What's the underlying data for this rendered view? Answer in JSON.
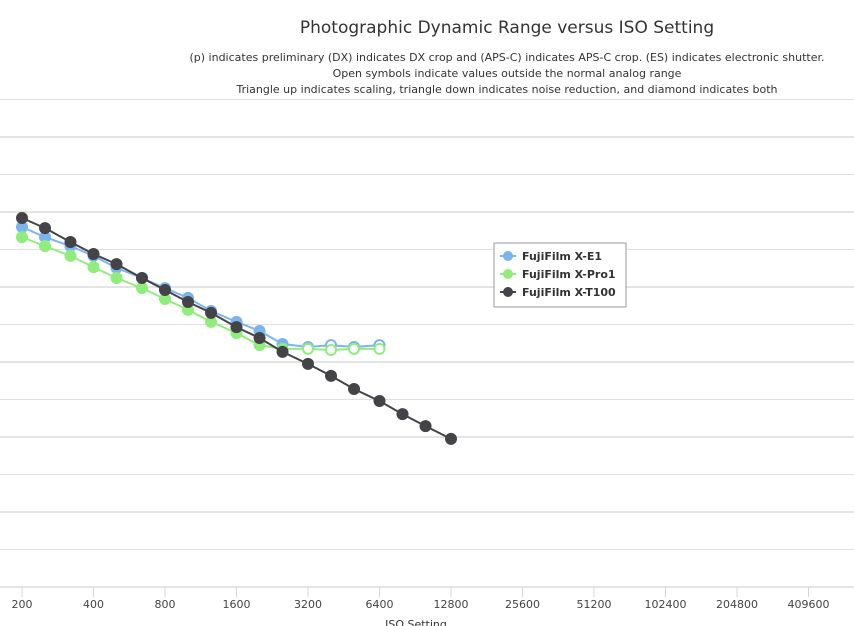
{
  "chart_data": {
    "type": "line",
    "title": "Photographic Dynamic Range versus ISO Setting",
    "subtitle": [
      "(p) indicates preliminary (DX) indicates DX crop and (APS-C) indicates APS-C crop. (ES) indicates electronic shutter.",
      "Open symbols indicate values outside the normal analog range",
      "Triangle up indicates scaling, triangle down indicates noise reduction, and diamond indicates both"
    ],
    "xlabel": "ISO Setting",
    "ylabel": "",
    "x_scale": "log2",
    "x_ticks": [
      "200",
      "400",
      "800",
      "1600",
      "3200",
      "6400",
      "12800",
      "25600",
      "51200",
      "102400",
      "204800",
      "409600"
    ],
    "ylim": [
      0,
      13
    ],
    "grid": true,
    "legend_position": "right",
    "series": [
      {
        "name": "FujiFilm X-E1",
        "color": "#7cb5ec",
        "x": [
          200,
          250,
          320,
          400,
          500,
          640,
          800,
          1000,
          1250,
          1600,
          2000,
          2500,
          3200,
          4000,
          5000,
          6400
        ],
        "values": [
          9.6,
          9.33,
          9.09,
          8.83,
          8.51,
          8.24,
          7.97,
          7.71,
          7.36,
          7.07,
          6.83,
          6.48,
          6.4,
          6.45,
          6.4,
          6.45
        ],
        "open": [
          false,
          false,
          false,
          false,
          false,
          false,
          false,
          false,
          false,
          false,
          false,
          false,
          true,
          true,
          true,
          true
        ]
      },
      {
        "name": "FujiFilm X-Pro1",
        "color": "#90ed7d",
        "x": [
          200,
          250,
          320,
          400,
          500,
          640,
          800,
          1000,
          1250,
          1600,
          2000,
          2500,
          3200,
          4000,
          5000,
          6400
        ],
        "values": [
          9.33,
          9.09,
          8.83,
          8.53,
          8.24,
          7.97,
          7.68,
          7.39,
          7.07,
          6.77,
          6.45,
          6.35,
          6.35,
          6.32,
          6.35,
          6.35
        ],
        "open": [
          false,
          false,
          false,
          false,
          false,
          false,
          false,
          false,
          false,
          false,
          false,
          false,
          true,
          true,
          true,
          true
        ]
      },
      {
        "name": "FujiFilm X-T100",
        "color": "#434348",
        "x": [
          200,
          250,
          320,
          400,
          500,
          640,
          800,
          1000,
          1250,
          1600,
          2000,
          2500,
          3200,
          4000,
          5000,
          6400,
          8000,
          10000,
          12800
        ],
        "values": [
          9.84,
          9.57,
          9.2,
          8.88,
          8.61,
          8.24,
          7.92,
          7.6,
          7.31,
          6.93,
          6.64,
          6.27,
          5.95,
          5.63,
          5.28,
          4.96,
          4.61,
          4.29,
          3.95
        ],
        "open": [
          false,
          false,
          false,
          false,
          false,
          false,
          false,
          false,
          false,
          false,
          false,
          false,
          false,
          false,
          false,
          false,
          false,
          false,
          false
        ]
      }
    ]
  }
}
